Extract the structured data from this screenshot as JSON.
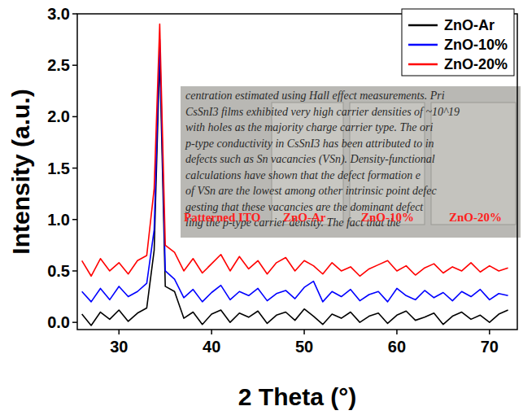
{
  "chart_data": {
    "type": "line",
    "x_label": "2 Theta (°)",
    "y_label": "Intensity (a.u.)",
    "x": [
      26,
      27,
      28,
      29,
      30,
      31,
      32,
      33,
      33.8,
      34.4,
      35,
      36,
      37,
      38,
      39,
      40,
      41,
      42,
      43,
      44,
      45,
      46,
      47,
      48,
      49,
      50,
      51,
      52,
      53,
      54,
      55,
      56,
      57,
      58,
      59,
      60,
      61,
      62,
      63,
      64,
      65,
      66,
      67,
      68,
      69,
      70,
      71,
      72
    ],
    "series": [
      {
        "name": "ZnO-Ar",
        "color": "#000000",
        "values": [
          0.08,
          -0.03,
          0.1,
          0.03,
          0.12,
          0.01,
          0.09,
          0.14,
          0.7,
          2.6,
          0.35,
          0.3,
          0.04,
          0.1,
          -0.02,
          0.08,
          0.12,
          0.0,
          0.09,
          0.05,
          0.11,
          -0.01,
          0.07,
          0.1,
          0.02,
          0.13,
          0.06,
          -0.02,
          0.08,
          0.04,
          0.1,
          0.0,
          0.06,
          0.09,
          -0.01,
          0.07,
          0.11,
          0.02,
          0.05,
          0.09,
          -0.02,
          0.06,
          0.1,
          0.03,
          0.07,
          0.0,
          0.08,
          0.12
        ]
      },
      {
        "name": "ZnO-10%",
        "color": "#0000ff",
        "values": [
          0.3,
          0.2,
          0.33,
          0.22,
          0.35,
          0.25,
          0.3,
          0.38,
          0.9,
          2.75,
          0.5,
          0.42,
          0.24,
          0.32,
          0.2,
          0.29,
          0.36,
          0.22,
          0.3,
          0.26,
          0.33,
          0.21,
          0.28,
          0.31,
          0.23,
          0.34,
          0.4,
          0.2,
          0.3,
          0.25,
          0.32,
          0.21,
          0.27,
          0.3,
          0.2,
          0.33,
          0.26,
          0.22,
          0.31,
          0.24,
          0.29,
          0.21,
          0.3,
          0.25,
          0.32,
          0.22,
          0.28,
          0.26
        ]
      },
      {
        "name": "ZnO-20%",
        "color": "#ff0000",
        "values": [
          0.6,
          0.45,
          0.62,
          0.5,
          0.58,
          0.47,
          0.6,
          0.65,
          1.3,
          2.9,
          0.75,
          0.68,
          0.5,
          0.62,
          0.48,
          0.57,
          0.66,
          0.5,
          0.64,
          0.52,
          0.6,
          0.47,
          0.58,
          0.63,
          0.5,
          0.6,
          0.55,
          0.47,
          0.58,
          0.5,
          0.54,
          0.45,
          0.52,
          0.56,
          0.6,
          0.5,
          0.55,
          0.46,
          0.53,
          0.57,
          0.48,
          0.54,
          0.5,
          0.58,
          0.49,
          0.55,
          0.5,
          0.53
        ]
      }
    ],
    "xlim": [
      25.5,
      73
    ],
    "ylim": [
      -0.07,
      3.0
    ],
    "xticks": [
      30,
      40,
      50,
      60,
      70
    ],
    "yticks": [
      {
        "value": 0,
        "label": "0.0"
      },
      0.5,
      {
        "value": 1,
        "label": "1.0"
      },
      1.5,
      {
        "value": 2,
        "label": "2.0"
      },
      2.5,
      {
        "value": 3,
        "label": "3.0"
      }
    ],
    "grid": false,
    "legend": "upper right",
    "inset": {
      "text_lines": [
        "centration estimated using Hall effect measurements. Pri",
        "CsSnI3 films exhibited very high carrier densities of ~10^19",
        "with holes as the majority charge carrier type. The ori",
        "p-type conductivity in CsSnI3 has been attributed to in",
        "defects such as Sn vacancies (VSn). Density-functional",
        "calculations have shown that the defect formation e",
        "of VSn are the lowest among other intrinsic point defec",
        "gesting that these vacancies are the dominant defect",
        "ling the p-type carrier density. The fact that the"
      ],
      "labels": [
        "Patterned ITO",
        "ZnO-Ar",
        "ZnO-10%",
        "ZnO-20%"
      ]
    }
  }
}
